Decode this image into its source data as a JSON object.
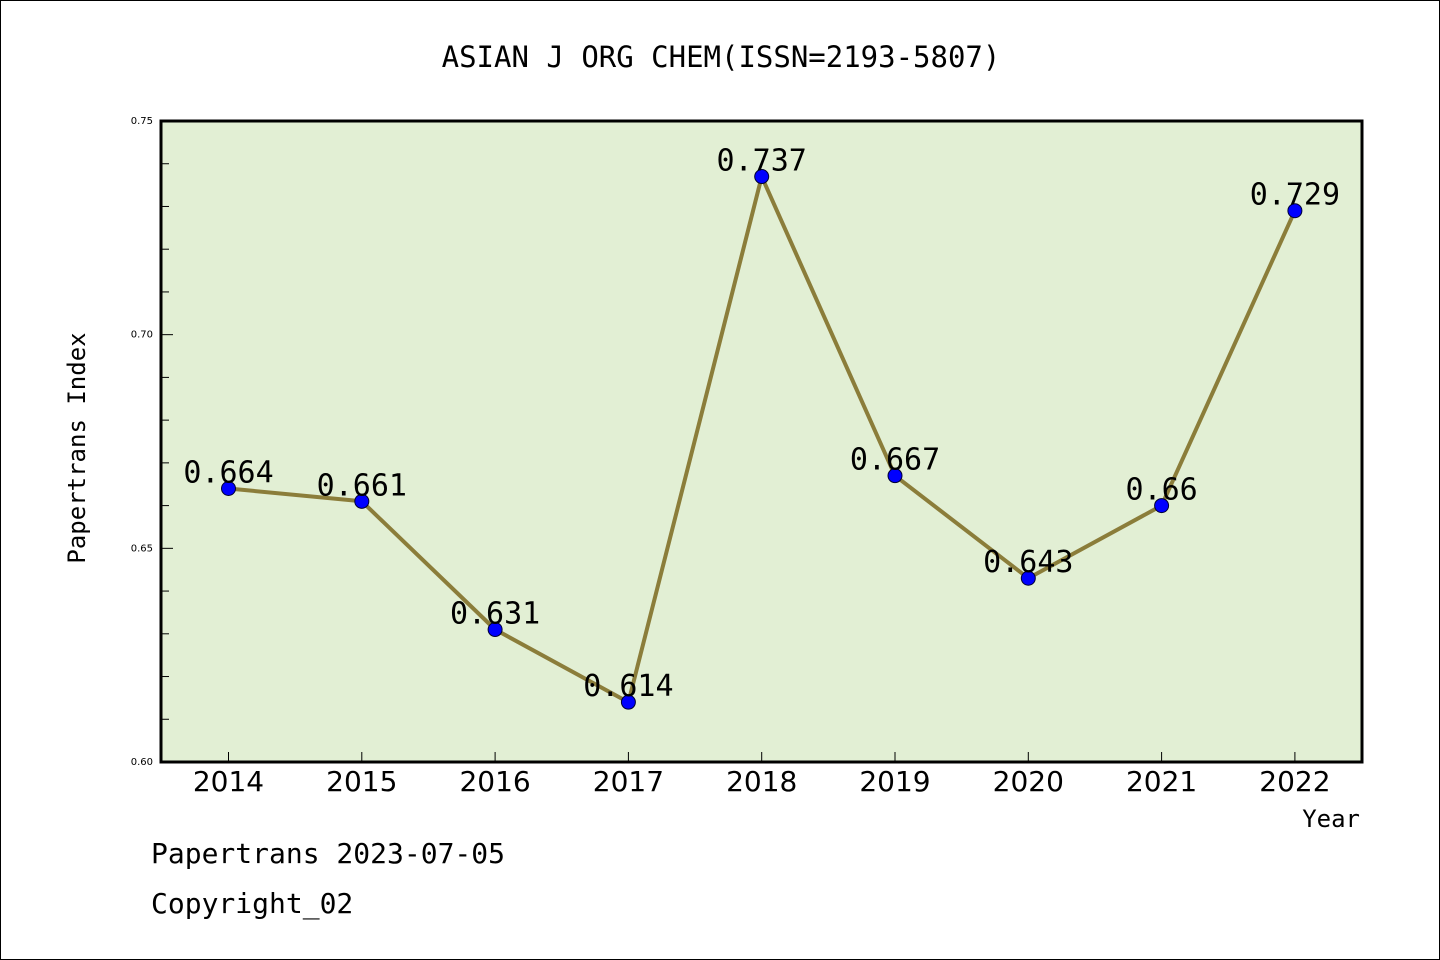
{
  "chart_data": {
    "type": "line",
    "title": "ASIAN J ORG CHEM(ISSN=2193-5807)",
    "xlabel": "Year",
    "ylabel": "Papertrans Index",
    "categories": [
      "2014",
      "2015",
      "2016",
      "2017",
      "2018",
      "2019",
      "2020",
      "2021",
      "2022"
    ],
    "series": [
      {
        "values": [
          0.664,
          0.661,
          0.631,
          0.614,
          0.737,
          0.667,
          0.643,
          0.66,
          0.729
        ]
      }
    ],
    "data_labels": [
      "0.664",
      "0.661",
      "0.631",
      "0.614",
      "0.737",
      "0.667",
      "0.643",
      "0.66",
      "0.729"
    ],
    "ylim": [
      0.6,
      0.75
    ],
    "yticks": [
      "0.60",
      "0.65",
      "0.70",
      "0.75"
    ],
    "grid": false,
    "legend": "none",
    "colors": {
      "plot_background": "#e2efd4",
      "line": "#8b7d3a",
      "marker": "#0000ff"
    }
  },
  "footer": {
    "date_line": "Papertrans 2023-07-05",
    "copyright_line": "Copyright_02"
  }
}
